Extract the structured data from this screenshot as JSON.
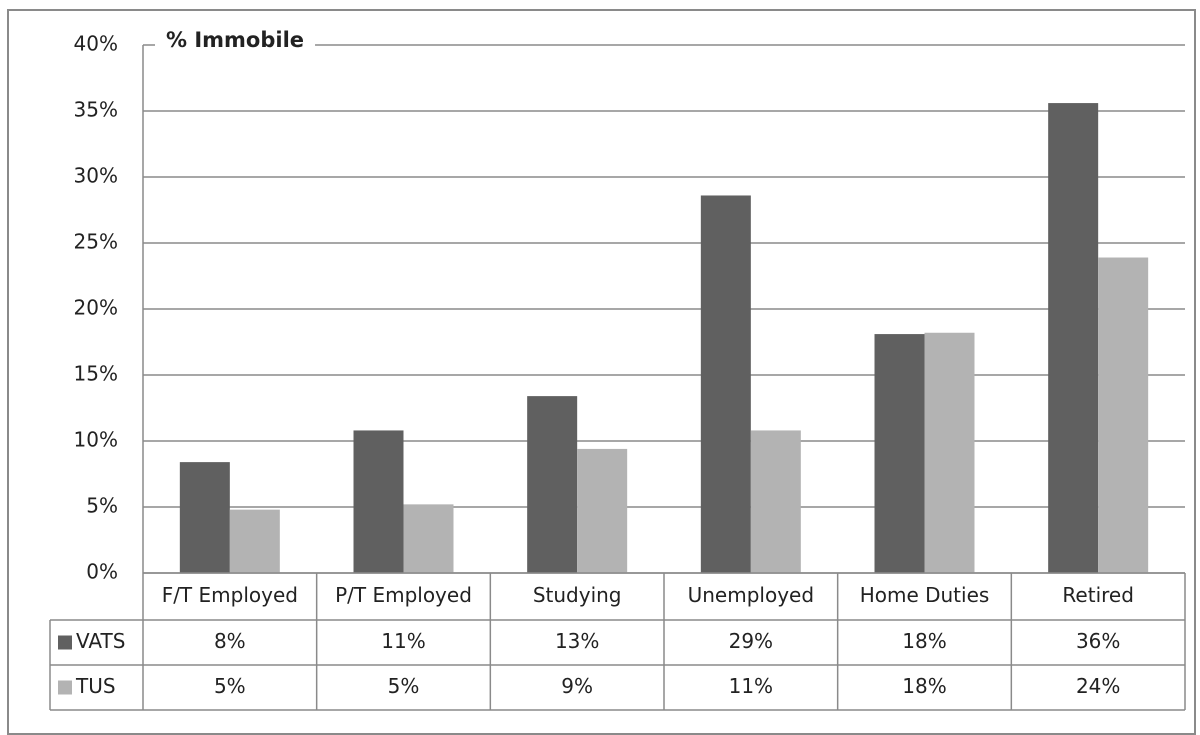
{
  "chart_data": {
    "type": "bar",
    "title": "% Immobile",
    "categories": [
      "F/T Employed",
      "P/T Employed",
      "Studying",
      "Unemployed",
      "Home Duties",
      "Retired"
    ],
    "series": [
      {
        "name": "VATS",
        "color": "#606060",
        "values": [
          8.4,
          10.8,
          13.4,
          28.6,
          18.1,
          35.6
        ],
        "value_labels": [
          "8%",
          "11%",
          "13%",
          "29%",
          "18%",
          "36%"
        ]
      },
      {
        "name": "TUS",
        "color": "#b3b3b3",
        "values": [
          4.8,
          5.2,
          9.4,
          10.8,
          18.2,
          23.9
        ],
        "value_labels": [
          "5%",
          "5%",
          "9%",
          "11%",
          "18%",
          "24%"
        ]
      }
    ],
    "ylim": [
      0,
      40
    ],
    "yticks": [
      {
        "value": 0,
        "label": "0%"
      },
      {
        "value": 5,
        "label": "5%"
      },
      {
        "value": 10,
        "label": "10%"
      },
      {
        "value": 15,
        "label": "15%"
      },
      {
        "value": 20,
        "label": "20%"
      },
      {
        "value": 25,
        "label": "25%"
      },
      {
        "value": 30,
        "label": "30%"
      },
      {
        "value": 35,
        "label": "35%"
      },
      {
        "value": 40,
        "label": "40%"
      }
    ],
    "grid": true
  }
}
